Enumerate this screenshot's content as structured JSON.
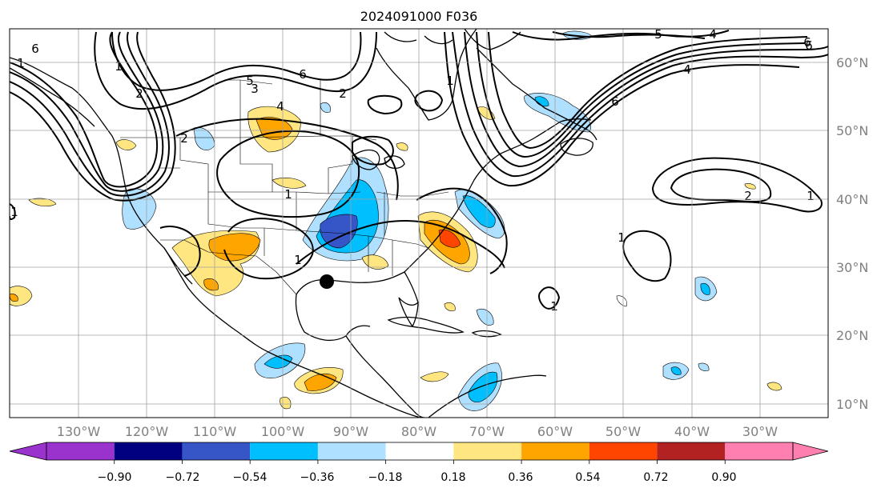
{
  "title": "2024091000 F036",
  "lon_labels": [
    "130°W",
    "120°W",
    "110°W",
    "100°W",
    "90°W",
    "80°W",
    "70°W",
    "60°W",
    "50°W",
    "40°W",
    "30°W"
  ],
  "lat_labels": [
    "60°N",
    "50°N",
    "40°N",
    "30°N",
    "20°N",
    "10°N"
  ],
  "colorbar": {
    "ticks": [
      "−0.90",
      "−0.72",
      "−0.54",
      "−0.36",
      "−0.18",
      "0.18",
      "0.36",
      "0.54",
      "0.72",
      "0.90"
    ],
    "under_color": "#9a32cd",
    "colors": [
      "#9a32cd",
      "#000080",
      "#3656c8",
      "#00bfff",
      "#b0e0ff",
      "#ffffff",
      "#ffe680",
      "#ffa500",
      "#ff4500",
      "#b22222",
      "#ff80b0"
    ],
    "over_color": "#ff80b0"
  },
  "contour_labels": [
    "6",
    "2",
    "1",
    "5",
    "6",
    "3",
    "2",
    "4",
    "1",
    "1",
    "1",
    "1",
    "2",
    "1",
    "5",
    "4",
    "6",
    "4",
    "6",
    "2",
    "1",
    "1",
    "1",
    "6"
  ],
  "marker": "storm-position-dot"
}
